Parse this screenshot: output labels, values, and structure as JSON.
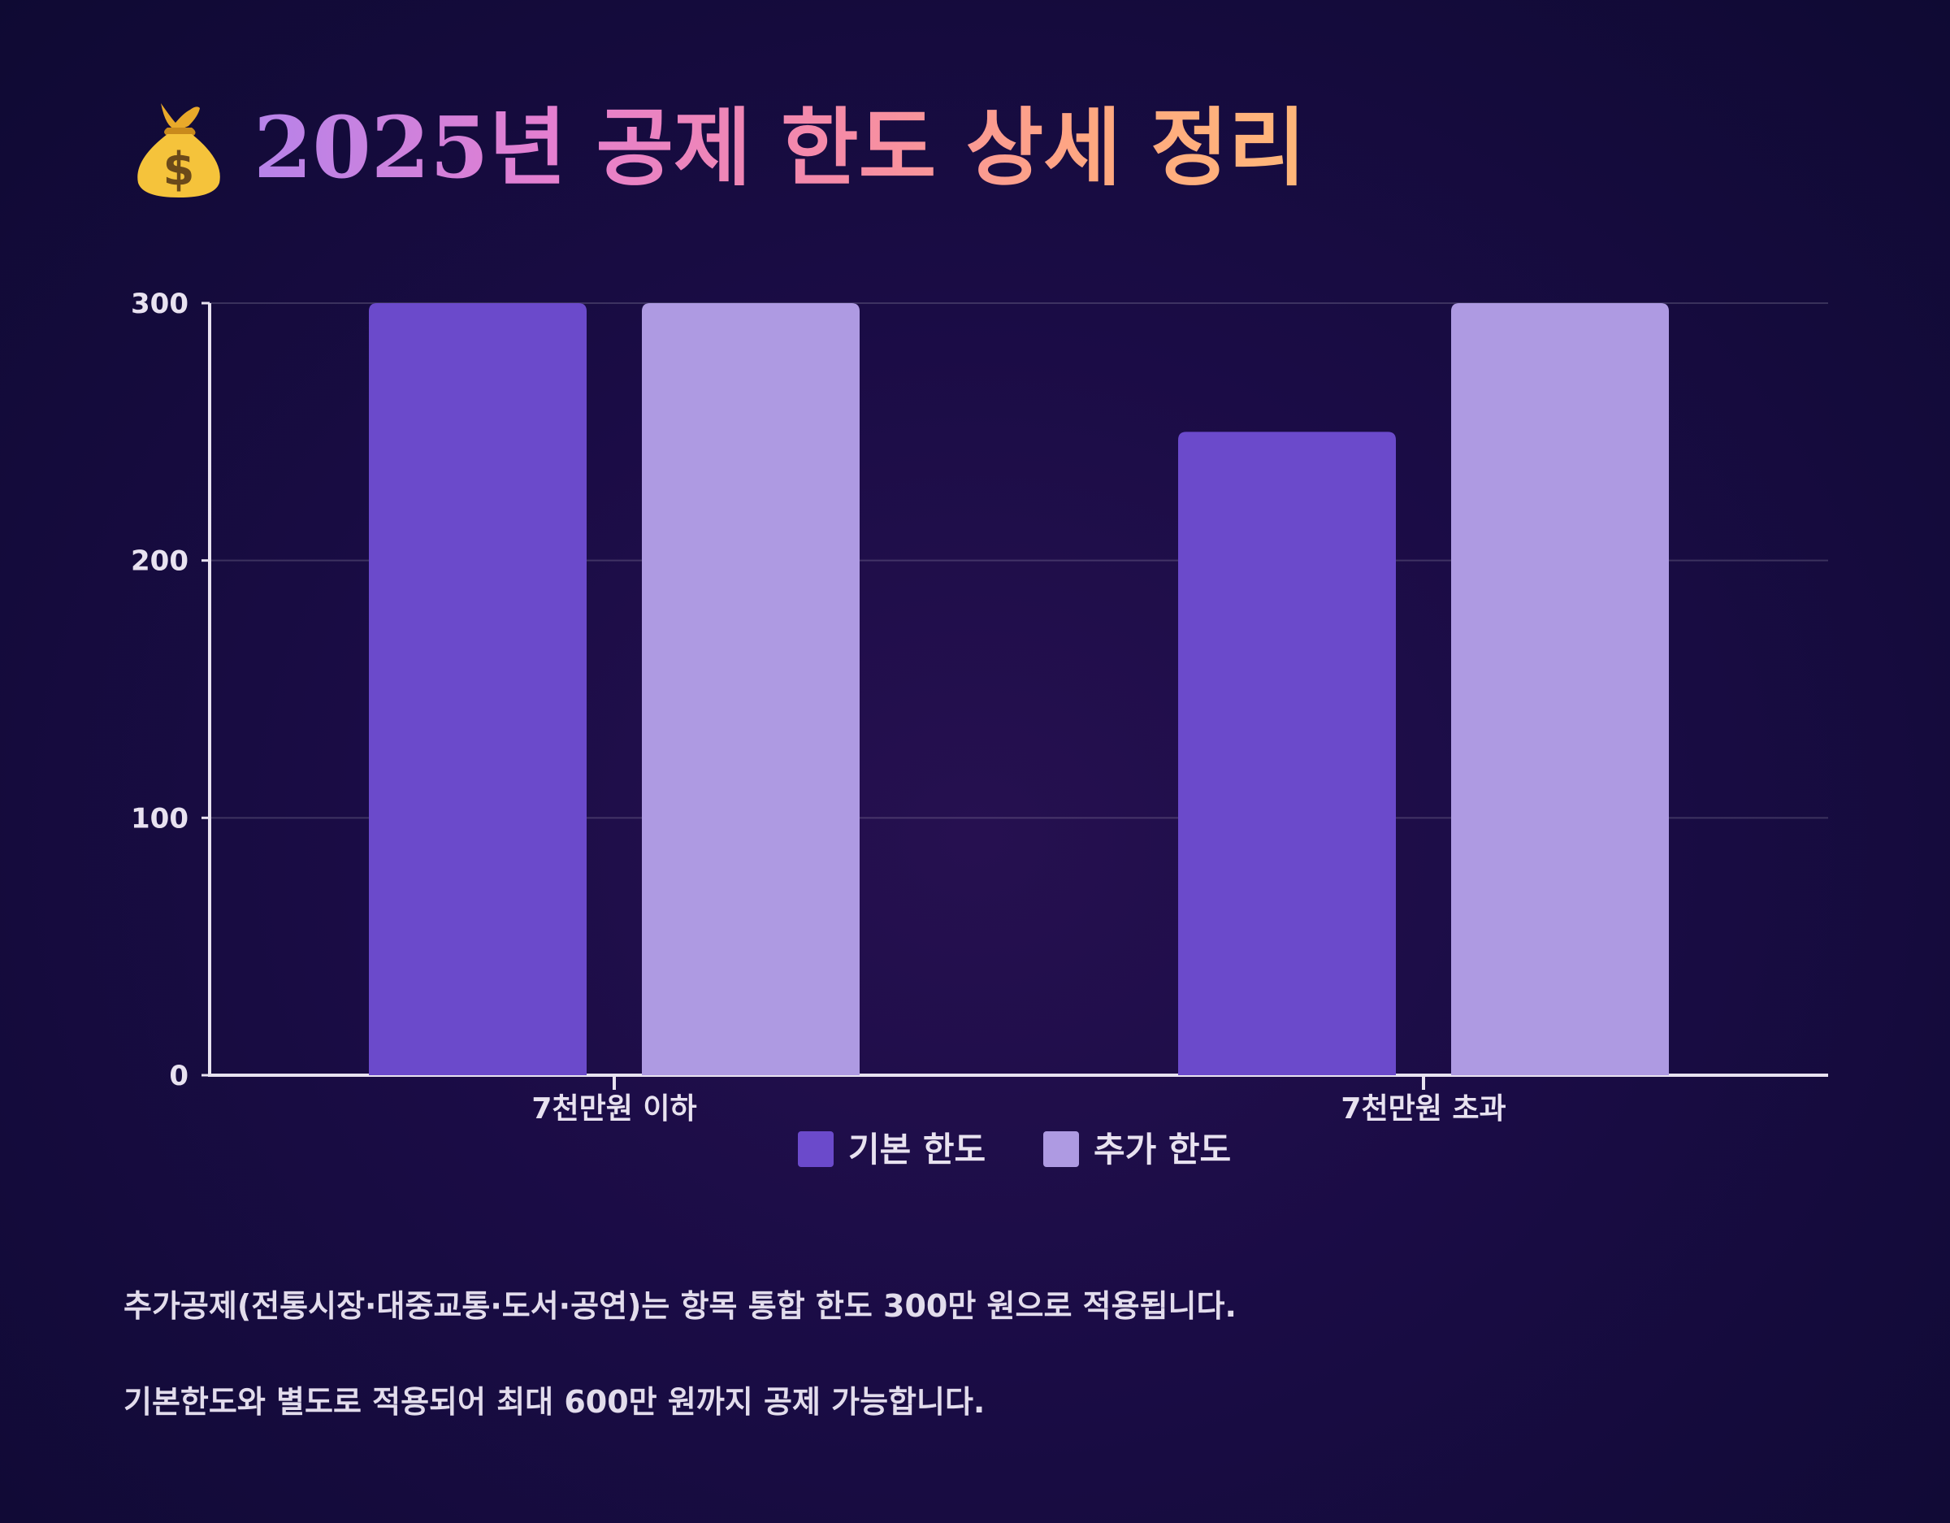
{
  "header": {
    "title": "2025년 공제 한도 상세 정리",
    "icon": "money-bag-icon"
  },
  "chart_data": {
    "type": "bar",
    "categories": [
      "7천만원 이하",
      "7천만원 초과"
    ],
    "series": [
      {
        "name": "기본 한도",
        "values": [
          300,
          250
        ],
        "color": "#6b4acb"
      },
      {
        "name": "추가 한도",
        "values": [
          300,
          300
        ],
        "color": "#ae9ae2"
      }
    ],
    "ylim": [
      0,
      300
    ],
    "yticks": [
      0,
      100,
      200,
      300
    ],
    "grid": true,
    "legend_position": "bottom-center"
  },
  "notes": [
    "추가공제(전통시장·대중교통·도서·공연)는 항목 통합 한도 300만 원으로 적용됩니다.",
    "기본한도와 별도로 적용되어 최대 600만 원까지 공제 가능합니다."
  ]
}
